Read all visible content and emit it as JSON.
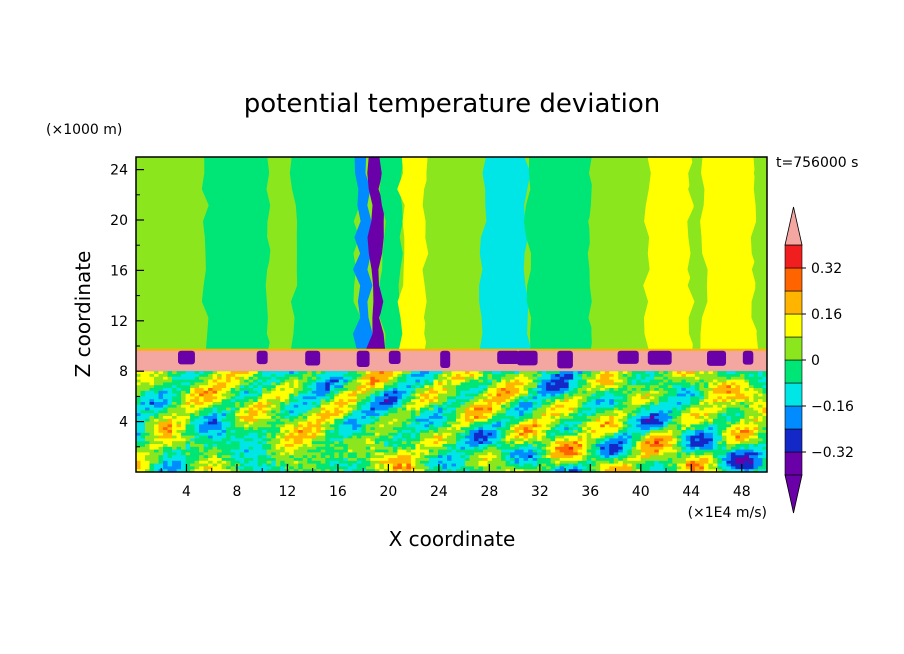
{
  "chart_data": {
    "type": "heatmap",
    "title": "potential temperature deviation",
    "xlabel": "X coordinate",
    "ylabel": "Z coordinate",
    "x_unit": "(×1E4 m/s)",
    "y_unit": "(×1000 m)",
    "time_label": "t=756000 s",
    "xlim": [
      0,
      50
    ],
    "ylim": [
      0,
      25
    ],
    "x_ticks": [
      "4",
      "8",
      "12",
      "16",
      "20",
      "24",
      "28",
      "32",
      "36",
      "40",
      "44",
      "48"
    ],
    "y_ticks": [
      "4",
      "8",
      "12",
      "16",
      "20",
      "24"
    ],
    "colorbar": {
      "levels": [
        -0.4,
        -0.32,
        -0.24,
        -0.16,
        -0.08,
        0,
        0.08,
        0.16,
        0.24,
        0.32,
        0.4
      ],
      "labels": [
        "0.32",
        "0.16",
        "0",
        "−0.16",
        "−0.32"
      ],
      "colors_low_to_high": [
        "#6a00a8",
        "#1428c8",
        "#008cff",
        "#00e6e6",
        "#00e676",
        "#8ce61e",
        "#ffff00",
        "#ffb400",
        "#ff6400",
        "#f01e1e"
      ],
      "under_color": "#6a00a8",
      "over_color": "#f4a6a0",
      "extend": "both"
    },
    "layers": [
      {
        "z_range": [
          0,
          8
        ],
        "description_value": "mixed, amplitude ≈ ±0.4"
      },
      {
        "z_range": [
          8,
          9.7
        ],
        "value": 0.44
      },
      {
        "z_range": [
          9.7,
          25
        ],
        "typical_value": 0.04
      }
    ],
    "upper_layer_columns": [
      {
        "x_range": [
          0,
          5.5
        ],
        "value": 0.04
      },
      {
        "x_range": [
          5.5,
          10.5
        ],
        "value": -0.04
      },
      {
        "x_range": [
          10.5,
          12.5
        ],
        "value": 0.04
      },
      {
        "x_range": [
          12.5,
          17.5
        ],
        "value": -0.04
      },
      {
        "x_range": [
          17.5,
          18.5
        ],
        "value": -0.2
      },
      {
        "x_range": [
          18.5,
          19.5
        ],
        "value": -0.36
      },
      {
        "x_range": [
          19.5,
          21
        ],
        "value": -0.04
      },
      {
        "x_range": [
          21,
          23
        ],
        "value": 0.12
      },
      {
        "x_range": [
          23,
          27.5
        ],
        "value": 0.04
      },
      {
        "x_range": [
          27.5,
          31
        ],
        "value": -0.12
      },
      {
        "x_range": [
          31,
          36
        ],
        "value": -0.04
      },
      {
        "x_range": [
          36,
          40.5
        ],
        "value": 0.04
      },
      {
        "x_range": [
          40.5,
          44
        ],
        "value": 0.12
      },
      {
        "x_range": [
          44,
          45
        ],
        "value": 0.04
      },
      {
        "x_range": [
          45,
          49
        ],
        "value": 0.12
      },
      {
        "x_range": [
          49,
          50
        ],
        "value": 0.04
      }
    ],
    "cold_bumps_at_top_of_stable_layer_x": [
      4,
      10,
      14,
      18,
      20.5,
      24.5,
      29.5,
      31,
      34,
      39,
      41.5,
      46,
      48.5
    ],
    "grid": false
  }
}
